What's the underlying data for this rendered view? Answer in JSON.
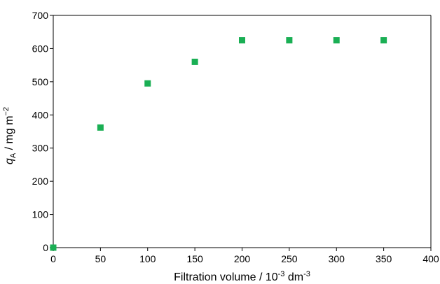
{
  "chart_data": {
    "type": "scatter",
    "title": "",
    "xlabel": "Filtration volume / 10⁻³ dm⁻³",
    "ylabel": "qA / mg m⁻²",
    "xlabel_parts": {
      "main": "Filtration volume / 10",
      "exp1": "-3",
      "mid": " dm",
      "exp2": "-3"
    },
    "ylabel_parts": {
      "q": "q",
      "sub": "A",
      "rest": " / mg m",
      "sup": "−2"
    },
    "xlim": [
      0,
      400
    ],
    "ylim": [
      0,
      700
    ],
    "x_ticks": [
      0,
      50,
      100,
      150,
      200,
      250,
      300,
      350,
      400
    ],
    "y_ticks": [
      0,
      100,
      200,
      300,
      400,
      500,
      600,
      700
    ],
    "grid": false,
    "legend": "none",
    "marker": "square",
    "color": "#1aaf54",
    "series": [
      {
        "x": [
          0,
          50,
          100,
          150,
          200,
          250,
          300,
          350
        ],
        "y": [
          0,
          362,
          495,
          560,
          625,
          625,
          625,
          625
        ]
      }
    ]
  }
}
